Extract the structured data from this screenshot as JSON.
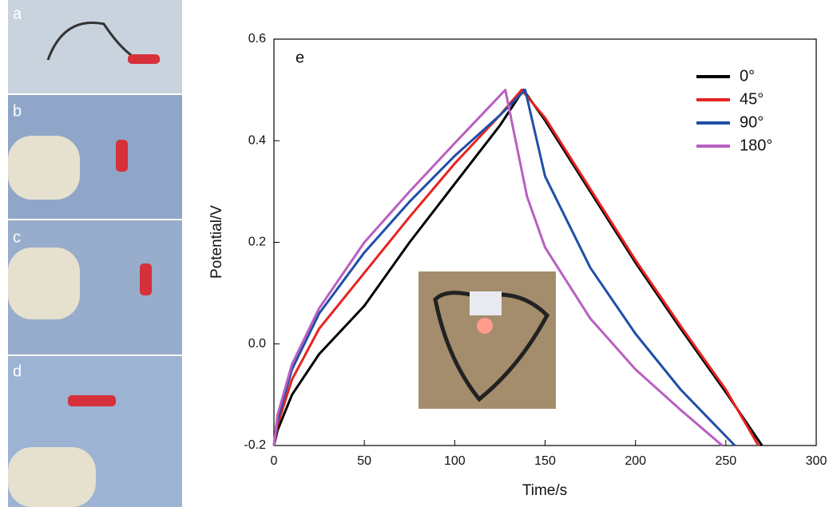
{
  "panels": [
    "a",
    "b",
    "c",
    "d"
  ],
  "chart_data": {
    "type": "line",
    "annotation": "e",
    "xlabel": "Time/s",
    "ylabel": "Potential/V",
    "xlim": [
      0,
      300
    ],
    "ylim": [
      -0.2,
      0.6
    ],
    "xticks": [
      0,
      50,
      100,
      150,
      200,
      250,
      300
    ],
    "yticks": [
      -0.2,
      {
        "value": 0,
        "label": "0.0"
      },
      0.2,
      0.4,
      0.6
    ],
    "legend": "upper right",
    "series": [
      {
        "name": "0°",
        "color": "#000000",
        "x": [
          0,
          2,
          10,
          25,
          50,
          75,
          100,
          125,
          138,
          150,
          175,
          200,
          225,
          250,
          270
        ],
        "values": [
          -0.2,
          -0.17,
          -0.1,
          -0.02,
          0.075,
          0.2,
          0.315,
          0.43,
          0.5,
          0.44,
          0.3,
          0.16,
          0.03,
          -0.095,
          -0.2
        ]
      },
      {
        "name": "45°",
        "color": "#e8231f",
        "x": [
          0,
          2,
          10,
          25,
          50,
          75,
          100,
          125,
          137,
          150,
          175,
          200,
          225,
          250,
          268
        ],
        "values": [
          -0.2,
          -0.16,
          -0.07,
          0.03,
          0.14,
          0.25,
          0.355,
          0.45,
          0.5,
          0.445,
          0.305,
          0.165,
          0.035,
          -0.09,
          -0.2
        ]
      },
      {
        "name": "90°",
        "color": "#1f4fa8",
        "x": [
          0,
          2,
          10,
          25,
          50,
          75,
          100,
          125,
          139,
          150,
          175,
          200,
          225,
          255
        ],
        "values": [
          -0.2,
          -0.15,
          -0.05,
          0.06,
          0.18,
          0.28,
          0.37,
          0.45,
          0.5,
          0.33,
          0.15,
          0.02,
          -0.09,
          -0.2
        ]
      },
      {
        "name": "180°",
        "color": "#b95fc0",
        "x": [
          0,
          2,
          10,
          25,
          50,
          75,
          100,
          120,
          128,
          140,
          150,
          175,
          200,
          225,
          248
        ],
        "values": [
          -0.2,
          -0.14,
          -0.04,
          0.07,
          0.2,
          0.3,
          0.395,
          0.47,
          0.5,
          0.29,
          0.19,
          0.05,
          -0.05,
          -0.13,
          -0.2
        ]
      }
    ]
  }
}
